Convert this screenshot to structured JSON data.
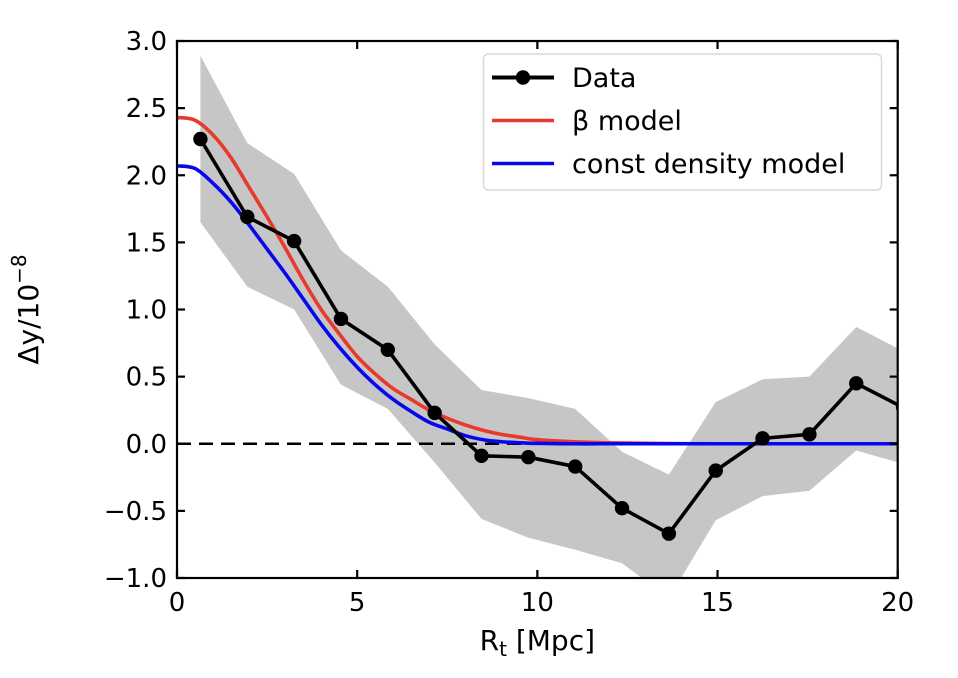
{
  "figure": {
    "background": "#ffffff",
    "axes": {
      "xlabel": {
        "base": "R",
        "sub": "t",
        "rest": " [Mpc]"
      },
      "ylabel": {
        "base": "Δy/10",
        "sup": "−8"
      },
      "xlim": [
        0,
        20
      ],
      "ylim": [
        -1.0,
        3.0
      ],
      "xticks": {
        "values": [
          0,
          5,
          10,
          15,
          20
        ],
        "labels": [
          "0",
          "5",
          "10",
          "15",
          "20"
        ]
      },
      "yticks": {
        "values": [
          3.0,
          2.5,
          2.0,
          1.5,
          1.0,
          0.5,
          0.0,
          -0.5,
          -1.0
        ],
        "labels": [
          "3.0",
          "2.5",
          "2.0",
          "1.5",
          "1.0",
          "0.5",
          "0.0",
          "−0.5",
          "−1.0"
        ]
      },
      "tick_direction": "in",
      "ticks_all_sides": true,
      "grid": false,
      "spine_color": "#000000"
    },
    "legend": {
      "position": "upper right",
      "border_color": "#d9d9d9",
      "background": "#ffffff",
      "entries": [
        {
          "label": "Data",
          "color": "#000000",
          "marker": "circle"
        },
        {
          "label": "β model",
          "color": "#e8392d",
          "marker": "none"
        },
        {
          "label": "const density model",
          "color": "#0707ee",
          "marker": "none"
        }
      ]
    },
    "colors": {
      "data_line": "#000000",
      "beta_model": "#e8392d",
      "const_density_model": "#0707ee",
      "error_band": "#c6c6c6",
      "zero_line": "#000000"
    }
  },
  "chart_data": {
    "type": "line",
    "title": "",
    "xlabel": "R_t [Mpc]",
    "ylabel": "Δy/10^−8",
    "xlim": [
      0,
      20
    ],
    "ylim": [
      -1.0,
      3.0
    ],
    "grid": false,
    "legend_position": "upper right",
    "reference_lines": [
      {
        "y": 0.0,
        "style": "dashed",
        "color": "#000000"
      }
    ],
    "series": [
      {
        "name": "Data",
        "color": "#000000",
        "marker": "circle",
        "style": "solid",
        "x": [
          0.65,
          1.95,
          3.25,
          4.55,
          5.85,
          7.15,
          8.45,
          9.75,
          11.05,
          12.35,
          13.65,
          14.95,
          16.25,
          17.55,
          18.85,
          20.15
        ],
        "y": [
          2.27,
          1.69,
          1.51,
          0.93,
          0.7,
          0.23,
          -0.09,
          -0.1,
          -0.17,
          -0.48,
          -0.67,
          -0.2,
          0.04,
          0.07,
          0.45,
          0.27
        ],
        "band": {
          "color": "#c6c6c6",
          "upper": [
            2.89,
            2.24,
            2.01,
            1.44,
            1.17,
            0.74,
            0.4,
            0.34,
            0.26,
            -0.06,
            -0.23,
            0.31,
            0.48,
            0.5,
            0.87,
            0.69
          ],
          "lower": [
            1.65,
            1.17,
            1.0,
            0.44,
            0.26,
            -0.14,
            -0.56,
            -0.7,
            -0.79,
            -0.89,
            -1.15,
            -0.57,
            -0.39,
            -0.35,
            -0.05,
            -0.15
          ]
        }
      },
      {
        "name": "β model",
        "color": "#e8392d",
        "marker": "none",
        "style": "solid",
        "x": [
          0,
          0.5,
          1,
          1.5,
          2,
          2.5,
          3,
          3.5,
          4,
          4.5,
          5,
          5.5,
          6,
          6.5,
          7,
          7.5,
          8,
          8.5,
          9,
          9.5,
          10,
          11,
          12,
          13,
          14,
          15,
          16,
          17,
          18,
          19,
          20
        ],
        "y": [
          2.43,
          2.41,
          2.3,
          2.13,
          1.91,
          1.69,
          1.46,
          1.22,
          1.0,
          0.82,
          0.65,
          0.52,
          0.41,
          0.33,
          0.25,
          0.19,
          0.14,
          0.1,
          0.07,
          0.05,
          0.03,
          0.015,
          0.007,
          0.003,
          0.001,
          0.0,
          0.0,
          0.0,
          0.0,
          0.0,
          0.0
        ]
      },
      {
        "name": "const density model",
        "color": "#0707ee",
        "marker": "none",
        "style": "solid",
        "x": [
          0,
          0.5,
          1,
          1.5,
          2,
          2.5,
          3,
          3.5,
          4,
          4.5,
          5,
          5.5,
          6,
          6.5,
          7,
          7.5,
          8,
          8.5,
          9,
          9.5,
          10,
          11,
          12,
          13,
          14,
          15,
          16,
          17,
          18,
          19,
          20
        ],
        "y": [
          2.07,
          2.05,
          1.94,
          1.8,
          1.63,
          1.45,
          1.27,
          1.08,
          0.89,
          0.72,
          0.57,
          0.44,
          0.33,
          0.24,
          0.16,
          0.11,
          0.06,
          0.03,
          0.015,
          0.007,
          0.003,
          0.0,
          0.0,
          0.0,
          0.0,
          0.0,
          0.0,
          0.0,
          0.0,
          0.0,
          0.0
        ]
      }
    ]
  }
}
